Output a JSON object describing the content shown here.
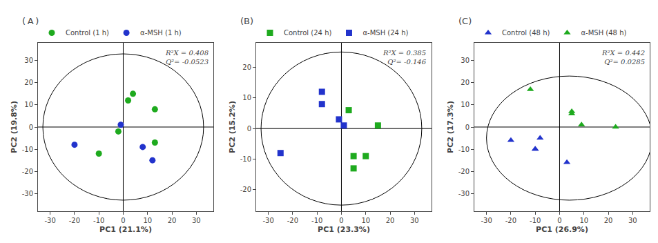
{
  "chart_data": [
    {
      "type": "scatter",
      "title": "( A )",
      "x_label": "PC1 (21.1%)",
      "y_label": "PC2 (19.8%)",
      "annotations": [
        "R²X = 0.408",
        "Q²= -0.0523"
      ],
      "xlim": [
        -35,
        37
      ],
      "ylim": [
        -38,
        38
      ],
      "xticks": [
        -30,
        -20,
        -10,
        0,
        10,
        20,
        30
      ],
      "yticks": [
        -30,
        -20,
        -10,
        0,
        10,
        20,
        30
      ],
      "ellipse": {
        "cx": 0,
        "cy": 0,
        "rx": 33,
        "ry": 33
      },
      "zero_lines": {
        "x": 0,
        "y": 0
      },
      "grid": false,
      "legend": "upper left",
      "series": [
        {
          "name": "Control (1 h)",
          "color": "#1eaa1e",
          "marker": "circle",
          "x": [
            -10,
            2,
            4,
            13,
            13,
            -2
          ],
          "y": [
            -12,
            12,
            15,
            8,
            -7,
            -2
          ]
        },
        {
          "name": "α-MSH (1 h)",
          "color": "#2233cc",
          "marker": "circle",
          "x": [
            -20,
            -1,
            8,
            12
          ],
          "y": [
            -8,
            1,
            -9,
            -15
          ]
        }
      ]
    },
    {
      "type": "scatter",
      "title": "(B)",
      "x_label": "PC1 (23.3%)",
      "y_label": "PC2 (15.2%)",
      "annotations": [
        "R²X = 0.385",
        "Q²= -0.146"
      ],
      "xlim": [
        -35,
        37
      ],
      "ylim": [
        -27,
        28
      ],
      "xticks": [
        -30,
        -20,
        -10,
        0,
        10,
        20,
        30
      ],
      "yticks": [
        -20,
        -10,
        0,
        10,
        20
      ],
      "ellipse": {
        "cx": 0,
        "cy": 0,
        "rx": 33,
        "ry": 25
      },
      "zero_lines": {
        "x": 0,
        "y": 0
      },
      "grid": false,
      "legend": "upper left",
      "series": [
        {
          "name": "Control (24 h)",
          "color": "#1eaa1e",
          "marker": "square",
          "x": [
            3,
            15,
            5,
            5,
            10
          ],
          "y": [
            6,
            1,
            -9,
            -13,
            -9
          ]
        },
        {
          "name": "α-MSH (24 h)",
          "color": "#2233cc",
          "marker": "square",
          "x": [
            -8,
            -8,
            -1,
            1,
            -25
          ],
          "y": [
            12,
            8,
            3,
            1,
            -8
          ]
        }
      ]
    },
    {
      "type": "scatter",
      "title": "(C)",
      "x_label": "PC1 (26.9%)",
      "y_label": "PC2 (17.3%)",
      "annotations": [
        "R²X = 0.442",
        "Q²= 0.0285"
      ],
      "xlim": [
        -35,
        37
      ],
      "ylim": [
        -38,
        38
      ],
      "xticks": [
        -30,
        -20,
        -10,
        0,
        10,
        20,
        30
      ],
      "yticks": [
        -30,
        -20,
        -10,
        0,
        10,
        20,
        30
      ],
      "ellipse": {
        "cx": 4,
        "cy": -5,
        "rx": 34,
        "ry": 28
      },
      "zero_lines": {
        "x": 0,
        "y": 0
      },
      "grid": false,
      "legend": "upper left",
      "series": [
        {
          "name": "Control (48 h)",
          "color": "#2233cc",
          "marker": "triangle-up",
          "x": [
            -20,
            -10,
            -10,
            -8,
            3
          ],
          "y": [
            -6,
            -10,
            -10,
            -5,
            -16
          ]
        },
        {
          "name": "α-MSH (48 h)",
          "color": "#1eaa1e",
          "marker": "triangle-up",
          "x": [
            -12,
            5,
            5,
            9,
            23
          ],
          "y": [
            17,
            7,
            6,
            1,
            0
          ]
        }
      ]
    }
  ]
}
